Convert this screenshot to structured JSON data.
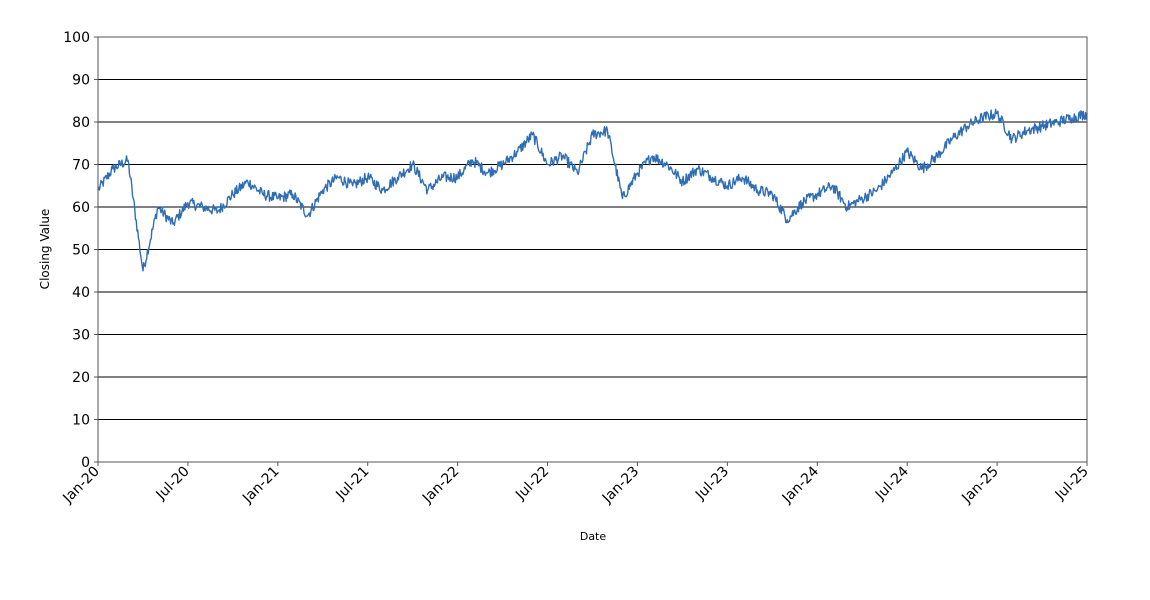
{
  "chart_data": {
    "type": "line",
    "title": "",
    "xlabel": "Date",
    "ylabel": "Closing Value",
    "ylim": [
      0,
      100
    ],
    "xlim": [
      "2020-01",
      "2025-07"
    ],
    "yticks": [
      0,
      10,
      20,
      30,
      40,
      50,
      60,
      70,
      80,
      90,
      100
    ],
    "xticks": [
      "Jan-20",
      "Jul-20",
      "Jan-21",
      "Jul-21",
      "Jan-22",
      "Jul-22",
      "Jan-23",
      "Jul-23",
      "Jan-24",
      "Jul-24",
      "Jan-25",
      "Jul-25"
    ],
    "grid": "horizontal",
    "line_color": "#2f6eb5",
    "series": [
      {
        "x": [
          "2020-01",
          "2020-02",
          "2020-03",
          "2020-04",
          "2020-05",
          "2020-06",
          "2020-07",
          "2020-08",
          "2020-09",
          "2020-10",
          "2020-11",
          "2020-12",
          "2021-01",
          "2021-02",
          "2021-03",
          "2021-04",
          "2021-05",
          "2021-06",
          "2021-07",
          "2021-08",
          "2021-09",
          "2021-10",
          "2021-11",
          "2021-12",
          "2022-01",
          "2022-02",
          "2022-03",
          "2022-04",
          "2022-05",
          "2022-06",
          "2022-07",
          "2022-08",
          "2022-09",
          "2022-10",
          "2022-11",
          "2022-12",
          "2023-01",
          "2023-02",
          "2023-03",
          "2023-04",
          "2023-05",
          "2023-06",
          "2023-07",
          "2023-08",
          "2023-09",
          "2023-10",
          "2023-11",
          "2023-12",
          "2024-01",
          "2024-02",
          "2024-03",
          "2024-04",
          "2024-05",
          "2024-06",
          "2024-07",
          "2024-08",
          "2024-09",
          "2024-10",
          "2024-11",
          "2024-12",
          "2025-01",
          "2025-02",
          "2025-03",
          "2025-04",
          "2025-05",
          "2025-06",
          "2025-07"
        ],
        "values": [
          64,
          69,
          71,
          45,
          60,
          56,
          61,
          60,
          59,
          63,
          66,
          63,
          62,
          63,
          58,
          64,
          67,
          65,
          67,
          64,
          67,
          70,
          64,
          67,
          67,
          71,
          68,
          70,
          73,
          77,
          70,
          72,
          68,
          77,
          78,
          62,
          68,
          72,
          70,
          66,
          69,
          67,
          65,
          67,
          64,
          63,
          57,
          61,
          63,
          65,
          60,
          62,
          64,
          68,
          73,
          69,
          72,
          76,
          79,
          81,
          82,
          76,
          78,
          79,
          80,
          81,
          82
        ]
      }
    ]
  }
}
